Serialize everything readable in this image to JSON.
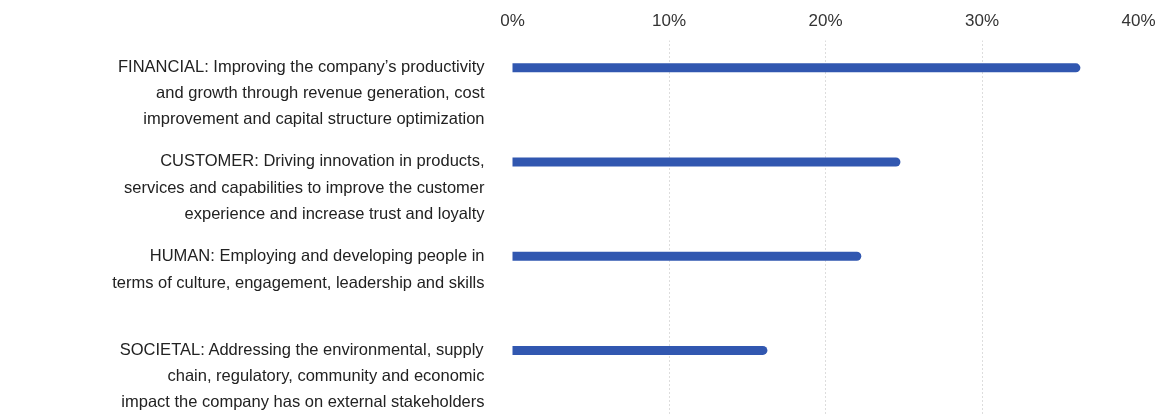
{
  "chart_data": {
    "type": "bar",
    "orientation": "horizontal",
    "categories": [
      "FINANCIAL: Improving the company’s productivity\nand growth through revenue generation, cost\nimprovement and capital structure optimization",
      "CUSTOMER: Driving innovation in products,\nservices and capabilities to improve the customer\nexperience and increase trust and loyalty",
      "HUMAN: Employing and developing people in\nterms of culture, engagement, leadership and skills",
      "SOCIETAL: Addressing the environmental, supply\nchain, regulatory, community and economic\nimpact the company has on external stakeholders"
    ],
    "values": [
      36,
      24.5,
      22,
      16
    ],
    "color": "#3157b0",
    "xlim": [
      0,
      40
    ],
    "xticks": [
      {
        "value": 0,
        "label": "0%"
      },
      {
        "value": 10,
        "label": "10%"
      },
      {
        "value": 20,
        "label": "20%"
      },
      {
        "value": 30,
        "label": "30%"
      },
      {
        "value": 40,
        "label": "40%"
      }
    ],
    "grid": "x"
  }
}
